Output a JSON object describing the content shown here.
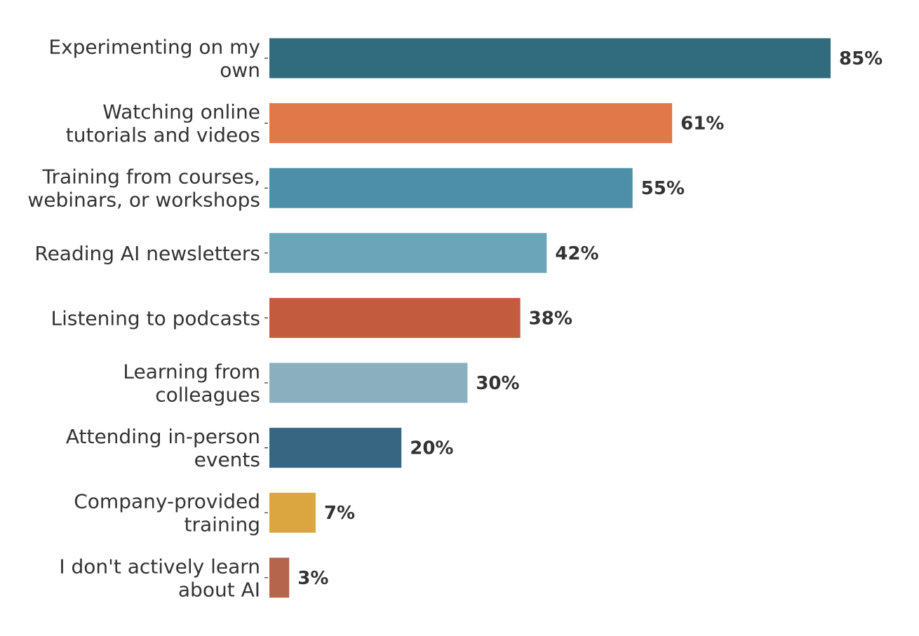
{
  "chart_data": {
    "type": "bar",
    "orientation": "horizontal",
    "categories": [
      [
        "Experimenting on my",
        "own"
      ],
      [
        "Watching online",
        "tutorials and videos"
      ],
      [
        "Training from courses,",
        "webinars, or workshops"
      ],
      [
        "Reading AI newsletters"
      ],
      [
        "Listening to podcasts"
      ],
      [
        "Learning from",
        "colleagues"
      ],
      [
        "Attending in-person",
        "events"
      ],
      [
        "Company-provided",
        "training"
      ],
      [
        "I don't actively learn",
        "about AI"
      ]
    ],
    "values": [
      85,
      61,
      55,
      42,
      38,
      30,
      20,
      7,
      3
    ],
    "value_labels": [
      "85%",
      "61%",
      "55%",
      "42%",
      "38%",
      "30%",
      "20%",
      "7%",
      "3%"
    ],
    "colors": [
      "#306B7E",
      "#E07849",
      "#4D8EA8",
      "#6BA5BA",
      "#C35C3F",
      "#8AAFBE",
      "#366682",
      "#DBA540",
      "#B5654B"
    ],
    "title": "",
    "xlabel": "",
    "ylabel": "",
    "xlim": [
      0,
      100
    ],
    "grid": false,
    "legend": "none"
  }
}
